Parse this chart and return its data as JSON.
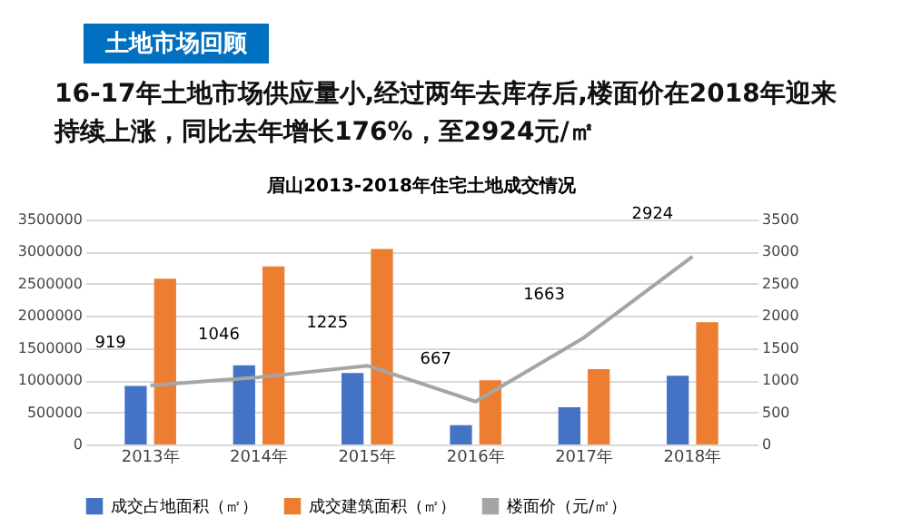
{
  "chart_data": {
    "type": "bar",
    "title": "眉山2013-2018年住宅土地成交情况",
    "annotations": [
      "土地市场回顾",
      "16-17年土地市场供应量小,经过两年去库存后,楼面价在2018年迎来持续上涨，同比去年增长176%，至2924元/㎡"
    ],
    "categories": [
      "2013年",
      "2014年",
      "2015年",
      "2016年",
      "2017年",
      "2018年"
    ],
    "series": [
      {
        "name": "成交占地面积（㎡）",
        "color": "#4472c4",
        "values": [
          910000,
          1230000,
          1110000,
          300000,
          580000,
          1070000
        ]
      },
      {
        "name": "成交建筑面积（㎡）",
        "color": "#ed7d31",
        "values": [
          2580000,
          2770000,
          3040000,
          1000000,
          1170000,
          1900000
        ]
      },
      {
        "name": "楼面价（元/㎡）",
        "type": "line",
        "axis": "y2",
        "color": "#a5a5a5",
        "values": [
          919,
          1046,
          1225,
          667,
          1663,
          2924
        ],
        "value_labels": [
          "919",
          "1046",
          "1225",
          "667",
          "1663",
          "2924"
        ]
      }
    ],
    "ylim": [
      0,
      3500000
    ],
    "yticks": [
      0,
      500000,
      1000000,
      1500000,
      2000000,
      2500000,
      3000000,
      3500000
    ],
    "y2lim": [
      0,
      3500
    ],
    "y2ticks": [
      0,
      500,
      1000,
      1500,
      2000,
      2500,
      3000,
      3500
    ],
    "grid": "y",
    "legend": "bottom"
  }
}
